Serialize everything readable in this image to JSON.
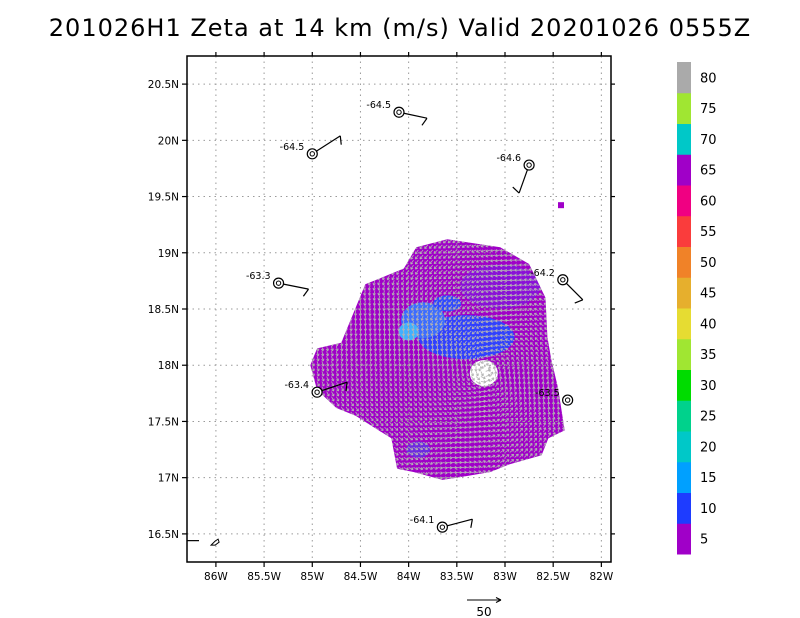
{
  "title": "201026H1 Zeta at 14 km (m/s) Valid 20201026 0555Z",
  "chart_data": {
    "type": "heatmap",
    "title": "201026H1 Zeta at 14 km (m/s) Valid 20201026 0555Z",
    "xlim": [
      -86.3,
      -81.9
    ],
    "ylim": [
      16.25,
      20.75
    ],
    "x_ticks": [
      {
        "v": -86.0,
        "label": "86W"
      },
      {
        "v": -85.5,
        "label": "85.5W"
      },
      {
        "v": -85.0,
        "label": "85W"
      },
      {
        "v": -84.5,
        "label": "84.5W"
      },
      {
        "v": -84.0,
        "label": "84W"
      },
      {
        "v": -83.5,
        "label": "83.5W"
      },
      {
        "v": -83.0,
        "label": "83W"
      },
      {
        "v": -82.5,
        "label": "82.5W"
      },
      {
        "v": -82.0,
        "label": "82W"
      }
    ],
    "y_ticks": [
      {
        "v": 16.5,
        "label": "16.5N"
      },
      {
        "v": 17.0,
        "label": "17N"
      },
      {
        "v": 17.5,
        "label": "17.5N"
      },
      {
        "v": 18.0,
        "label": "18N"
      },
      {
        "v": 18.5,
        "label": "18.5N"
      },
      {
        "v": 19.0,
        "label": "19N"
      },
      {
        "v": 19.5,
        "label": "19.5N"
      },
      {
        "v": 20.0,
        "label": "20N"
      },
      {
        "v": 20.5,
        "label": "20.5N"
      }
    ],
    "grid": true,
    "colorbar": {
      "placement": "right",
      "levels": [
        {
          "label": "5",
          "color": "#a000c8"
        },
        {
          "label": "10",
          "color": "#1e3cff"
        },
        {
          "label": "15",
          "color": "#00a0ff"
        },
        {
          "label": "20",
          "color": "#00c8c8"
        },
        {
          "label": "25",
          "color": "#00d28c"
        },
        {
          "label": "30",
          "color": "#00dc00"
        },
        {
          "label": "35",
          "color": "#a0e632"
        },
        {
          "label": "40",
          "color": "#e6dc32"
        },
        {
          "label": "45",
          "color": "#e6af2d"
        },
        {
          "label": "50",
          "color": "#f08228"
        },
        {
          "label": "55",
          "color": "#fa3c3c"
        },
        {
          "label": "60",
          "color": "#f00082"
        },
        {
          "label": "65",
          "color": "#a000c8"
        },
        {
          "label": "70",
          "color": "#00c8c8"
        },
        {
          "label": "75",
          "color": "#a0e632"
        },
        {
          "label": "80",
          "color": "#aaaaaa"
        }
      ]
    },
    "dropsondes": [
      {
        "lon": -84.1,
        "lat": 20.25,
        "label": "-64.5"
      },
      {
        "lon": -85.0,
        "lat": 19.88,
        "label": "-64.5"
      },
      {
        "lon": -82.75,
        "lat": 19.78,
        "label": "-64.6"
      },
      {
        "lon": -85.35,
        "lat": 18.73,
        "label": "-63.3"
      },
      {
        "lon": -82.4,
        "lat": 18.76,
        "label": "-64.2"
      },
      {
        "lon": -84.95,
        "lat": 17.76,
        "label": "-63.4"
      },
      {
        "lon": -82.35,
        "lat": 17.69,
        "label": "-63.5"
      },
      {
        "lon": -83.65,
        "lat": 16.56,
        "label": "-64.1"
      }
    ],
    "storm_center": {
      "lon": -83.2,
      "lat": 17.95
    },
    "reference_vector": {
      "label": "50",
      "value": 50
    }
  }
}
